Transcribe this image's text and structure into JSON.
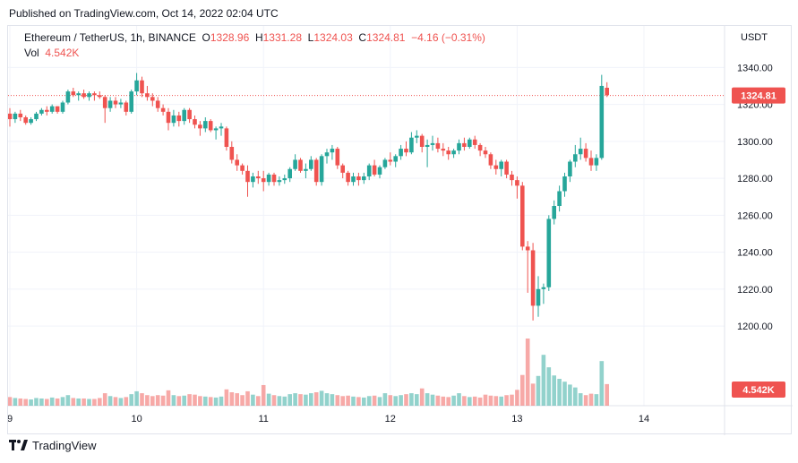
{
  "header": {
    "published": "Published on TradingView.com, Oct 14, 2022 02:04 UTC"
  },
  "legend": {
    "symbol": "Ethereum / TetherUS, 1h, BINANCE",
    "open_label": "O",
    "open": "1328.96",
    "high_label": "H",
    "high": "1331.28",
    "low_label": "L",
    "low": "1324.03",
    "close_label": "C",
    "close": "1324.81",
    "change": "−4.16 (−0.31%)",
    "vol_label": "Vol",
    "vol_value": "4.542K"
  },
  "axis": {
    "currency": "USDT",
    "price_badge": "1324.81",
    "volume_badge": "4.542K"
  },
  "footer": {
    "logo_text": "TradingView"
  },
  "colors": {
    "up": "#26a69a",
    "down": "#ef5350",
    "grid": "#f0f3fa",
    "price_line": "#ef5350"
  },
  "chart_data": {
    "type": "candlestick",
    "title": "Ethereum / TetherUS, 1h, BINANCE",
    "ylabel": "USDT",
    "ylim": [
      1185,
      1345
    ],
    "yticks": [
      1200,
      1220,
      1240,
      1260,
      1280,
      1300,
      1320,
      1340
    ],
    "xticks": [
      {
        "label": "9",
        "index": 0
      },
      {
        "label": "10",
        "index": 24
      },
      {
        "label": "11",
        "index": 48
      },
      {
        "label": "12",
        "index": 72
      },
      {
        "label": "13",
        "index": 96
      },
      {
        "label": "14",
        "index": 120
      }
    ],
    "last_price": 1324.81,
    "candles": [
      [
        1315,
        1318,
        1308,
        1312,
        1.8
      ],
      [
        1312,
        1316,
        1310,
        1315,
        1.6
      ],
      [
        1315,
        1317,
        1311,
        1313,
        1.5
      ],
      [
        1313,
        1314,
        1309,
        1310,
        1.4
      ],
      [
        1310,
        1313,
        1309,
        1312,
        1.3
      ],
      [
        1312,
        1316,
        1311,
        1315,
        1.6
      ],
      [
        1315,
        1318,
        1314,
        1317,
        1.5
      ],
      [
        1317,
        1319,
        1314,
        1316,
        1.4
      ],
      [
        1316,
        1320,
        1315,
        1319,
        1.7
      ],
      [
        1319,
        1319,
        1315,
        1316,
        1.5
      ],
      [
        1316,
        1322,
        1315,
        1321,
        1.8
      ],
      [
        1321,
        1328,
        1320,
        1327,
        2.2
      ],
      [
        1327,
        1329,
        1324,
        1325,
        1.6
      ],
      [
        1325,
        1327,
        1322,
        1326,
        1.5
      ],
      [
        1326,
        1328,
        1323,
        1324,
        1.5
      ],
      [
        1324,
        1327,
        1322,
        1326,
        1.4
      ],
      [
        1326,
        1327,
        1322,
        1325,
        1.4
      ],
      [
        1325,
        1327,
        1323,
        1324,
        1.6
      ],
      [
        1324,
        1325,
        1310,
        1318,
        2.6
      ],
      [
        1318,
        1324,
        1316,
        1322,
        2.0
      ],
      [
        1322,
        1324,
        1318,
        1320,
        1.8
      ],
      [
        1320,
        1323,
        1318,
        1321,
        1.6
      ],
      [
        1321,
        1322,
        1314,
        1316,
        1.8
      ],
      [
        1316,
        1328,
        1315,
        1327,
        2.4
      ],
      [
        1327,
        1337,
        1325,
        1333,
        3.0
      ],
      [
        1333,
        1335,
        1324,
        1326,
        2.6
      ],
      [
        1326,
        1330,
        1322,
        1324,
        2.2
      ],
      [
        1324,
        1326,
        1319,
        1322,
        2.0
      ],
      [
        1322,
        1324,
        1316,
        1318,
        2.2
      ],
      [
        1318,
        1320,
        1314,
        1316,
        2.1
      ],
      [
        1316,
        1318,
        1306,
        1310,
        3.2
      ],
      [
        1310,
        1317,
        1308,
        1314,
        2.2
      ],
      [
        1314,
        1316,
        1308,
        1311,
        2.0
      ],
      [
        1311,
        1318,
        1309,
        1317,
        2.1
      ],
      [
        1317,
        1318,
        1310,
        1312,
        2.4
      ],
      [
        1312,
        1314,
        1307,
        1309,
        2.3
      ],
      [
        1309,
        1311,
        1303,
        1307,
        2.0
      ],
      [
        1307,
        1313,
        1305,
        1311,
        1.9
      ],
      [
        1311,
        1312,
        1305,
        1306,
        1.8
      ],
      [
        1306,
        1308,
        1301,
        1307,
        1.7
      ],
      [
        1307,
        1310,
        1303,
        1308,
        1.9
      ],
      [
        1307,
        1308,
        1295,
        1297,
        3.4
      ],
      [
        1297,
        1300,
        1288,
        1290,
        2.8
      ],
      [
        1290,
        1293,
        1284,
        1287,
        2.6
      ],
      [
        1287,
        1288,
        1282,
        1284,
        2.2
      ],
      [
        1284,
        1287,
        1270,
        1278,
        3.0
      ],
      [
        1278,
        1283,
        1275,
        1281,
        2.3
      ],
      [
        1281,
        1284,
        1277,
        1280,
        2.0
      ],
      [
        1280,
        1284,
        1273,
        1278,
        4.3
      ],
      [
        1278,
        1283,
        1276,
        1282,
        2.5
      ],
      [
        1282,
        1283,
        1276,
        1278,
        2.2
      ],
      [
        1278,
        1281,
        1276,
        1279,
        2.0
      ],
      [
        1279,
        1282,
        1277,
        1280,
        1.9
      ],
      [
        1280,
        1286,
        1278,
        1285,
        2.4
      ],
      [
        1285,
        1293,
        1284,
        1290,
        2.6
      ],
      [
        1290,
        1291,
        1283,
        1284,
        2.4
      ],
      [
        1284,
        1288,
        1280,
        1285,
        2.3
      ],
      [
        1285,
        1292,
        1284,
        1290,
        2.6
      ],
      [
        1290,
        1291,
        1276,
        1278,
        2.8
      ],
      [
        1278,
        1293,
        1276,
        1292,
        3.1
      ],
      [
        1292,
        1296,
        1288,
        1294,
        2.6
      ],
      [
        1294,
        1298,
        1290,
        1296,
        2.4
      ],
      [
        1296,
        1297,
        1285,
        1287,
        2.2
      ],
      [
        1287,
        1288,
        1280,
        1283,
        2.0
      ],
      [
        1283,
        1284,
        1276,
        1278,
        2.1
      ],
      [
        1278,
        1283,
        1276,
        1281,
        1.9
      ],
      [
        1281,
        1283,
        1276,
        1279,
        1.8
      ],
      [
        1279,
        1283,
        1277,
        1281,
        1.7
      ],
      [
        1281,
        1288,
        1279,
        1287,
        2.0
      ],
      [
        1287,
        1290,
        1281,
        1282,
        2.1
      ],
      [
        1282,
        1287,
        1280,
        1286,
        1.8
      ],
      [
        1286,
        1291,
        1285,
        1290,
        2.6
      ],
      [
        1290,
        1294,
        1287,
        1289,
        2.2
      ],
      [
        1289,
        1293,
        1286,
        1292,
        2.0
      ],
      [
        1292,
        1298,
        1290,
        1296,
        2.2
      ],
      [
        1296,
        1300,
        1292,
        1294,
        2.4
      ],
      [
        1294,
        1305,
        1293,
        1302,
        2.6
      ],
      [
        1302,
        1306,
        1299,
        1303,
        2.4
      ],
      [
        1303,
        1304,
        1294,
        1297,
        3.6
      ],
      [
        1297,
        1301,
        1286,
        1298,
        2.6
      ],
      [
        1298,
        1303,
        1295,
        1299,
        2.3
      ],
      [
        1299,
        1302,
        1294,
        1296,
        2.1
      ],
      [
        1296,
        1299,
        1292,
        1295,
        1.9
      ],
      [
        1295,
        1297,
        1290,
        1293,
        1.8
      ],
      [
        1293,
        1296,
        1291,
        1295,
        2.1
      ],
      [
        1295,
        1301,
        1293,
        1299,
        2.6
      ],
      [
        1299,
        1302,
        1295,
        1297,
        2.0
      ],
      [
        1297,
        1302,
        1296,
        1301,
        1.8
      ],
      [
        1301,
        1303,
        1296,
        1298,
        1.9
      ],
      [
        1298,
        1299,
        1292,
        1295,
        1.7
      ],
      [
        1295,
        1297,
        1291,
        1293,
        2.3
      ],
      [
        1293,
        1294,
        1285,
        1287,
        2.1
      ],
      [
        1287,
        1290,
        1282,
        1285,
        2.0
      ],
      [
        1285,
        1290,
        1281,
        1289,
        1.9
      ],
      [
        1289,
        1290,
        1280,
        1282,
        2.2
      ],
      [
        1282,
        1284,
        1276,
        1279,
        2.3
      ],
      [
        1279,
        1281,
        1269,
        1276,
        3.3
      ],
      [
        1276,
        1278,
        1241,
        1243,
        6.4
      ],
      [
        1243,
        1246,
        1218,
        1241,
        14.0
      ],
      [
        1241,
        1245,
        1203,
        1211,
        4.6
      ],
      [
        1211,
        1227,
        1205,
        1220,
        6.2
      ],
      [
        1220,
        1223,
        1212,
        1221,
        10.6
      ],
      [
        1221,
        1260,
        1219,
        1258,
        8.0
      ],
      [
        1258,
        1268,
        1255,
        1265,
        6.3
      ],
      [
        1265,
        1276,
        1262,
        1273,
        5.6
      ],
      [
        1273,
        1283,
        1270,
        1281,
        5.0
      ],
      [
        1281,
        1290,
        1278,
        1289,
        4.4
      ],
      [
        1289,
        1298,
        1286,
        1293,
        3.8
      ],
      [
        1293,
        1302,
        1290,
        1296,
        2.6
      ],
      [
        1296,
        1299,
        1289,
        1291,
        2.2
      ],
      [
        1291,
        1295,
        1284,
        1287,
        2.5
      ],
      [
        1287,
        1293,
        1284,
        1291,
        2.4
      ],
      [
        1291,
        1336,
        1290,
        1330,
        9.3
      ],
      [
        1329,
        1332,
        1324,
        1325,
        4.5
      ]
    ]
  }
}
